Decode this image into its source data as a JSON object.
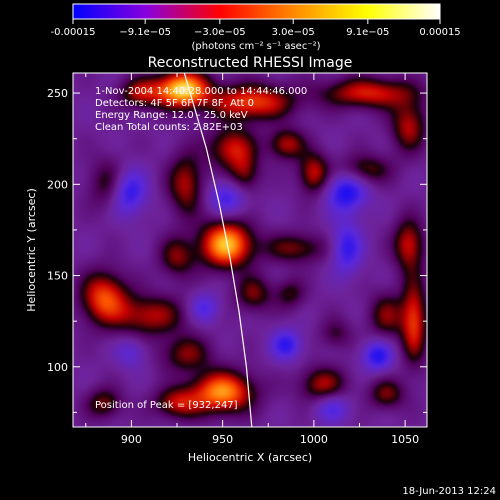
{
  "chart_data": {
    "type": "heatmap",
    "title": "Reconstructed RHESSI Image",
    "xlabel": "Heliocentric X (arcsec)",
    "ylabel": "Heliocentric Y (arcsec)",
    "xlim": [
      868,
      1062
    ],
    "ylim": [
      67,
      261
    ],
    "x_ticks": [
      900,
      950,
      1000,
      1050
    ],
    "x_tick_labels": [
      "900",
      "950",
      "1000",
      "1050"
    ],
    "y_ticks": [
      100,
      150,
      200,
      250
    ],
    "y_tick_labels": [
      "100",
      "150",
      "200",
      "250"
    ],
    "colorbar": {
      "label": "(photons cm⁻² s⁻¹ asec⁻²)",
      "range": [
        -0.00015,
        0.00015
      ],
      "ticks": [
        -0.00015,
        -9.1e-05,
        -3e-05,
        3e-05,
        9.1e-05,
        0.00015
      ],
      "tick_labels": [
        "-0.00015",
        "−9.1e−05",
        "−3.0e−05",
        "3.0e−05",
        "9.1e−05",
        "0.00015"
      ],
      "colors": [
        "#0000ff",
        "#8800dd",
        "#ff0000",
        "#ff8800",
        "#ffff00",
        "#ffffff"
      ]
    },
    "annotations": [
      "1-Nov-2004 14:40:28.000 to 14:44:46.000",
      "Detectors: 4F 5F 6F 7F 8F, Att 0",
      "Energy Range: 12.0 - 25.0 keV",
      "Clean   Total counts: 2.82E+03"
    ],
    "peak_label": "Position of Peak = [932,247]",
    "peak": [
      932,
      247
    ],
    "limb": [
      [
        929,
        261
      ],
      [
        941,
        220
      ],
      [
        948,
        190
      ],
      [
        954,
        160
      ],
      [
        959,
        130
      ],
      [
        963,
        100
      ],
      [
        966,
        67
      ]
    ],
    "blobs": [
      {
        "x": 928,
        "y": 252,
        "sx": 10,
        "sy": 7,
        "a": 1.15
      },
      {
        "x": 905,
        "y": 250,
        "sx": 8,
        "sy": 6,
        "a": 0.55
      },
      {
        "x": 966,
        "y": 245,
        "sx": 16,
        "sy": 7,
        "a": 0.75
      },
      {
        "x": 955,
        "y": 220,
        "sx": 9,
        "sy": 8,
        "a": 0.6
      },
      {
        "x": 985,
        "y": 222,
        "sx": 7,
        "sy": 6,
        "a": 0.55
      },
      {
        "x": 1030,
        "y": 250,
        "sx": 18,
        "sy": 6,
        "a": 0.65
      },
      {
        "x": 1052,
        "y": 232,
        "sx": 7,
        "sy": 10,
        "a": 0.55
      },
      {
        "x": 888,
        "y": 200,
        "sx": 8,
        "sy": 10,
        "a": 0.4
      },
      {
        "x": 930,
        "y": 200,
        "sx": 7,
        "sy": 12,
        "a": 0.55
      },
      {
        "x": 962,
        "y": 205,
        "sx": 6,
        "sy": 8,
        "a": 0.45
      },
      {
        "x": 1000,
        "y": 206,
        "sx": 6,
        "sy": 8,
        "a": 0.6
      },
      {
        "x": 1028,
        "y": 208,
        "sx": 10,
        "sy": 6,
        "a": 0.45
      },
      {
        "x": 952,
        "y": 167,
        "sx": 10,
        "sy": 9,
        "a": 1.05
      },
      {
        "x": 925,
        "y": 160,
        "sx": 7,
        "sy": 8,
        "a": 0.45
      },
      {
        "x": 990,
        "y": 165,
        "sx": 12,
        "sy": 6,
        "a": 0.45
      },
      {
        "x": 1052,
        "y": 167,
        "sx": 6,
        "sy": 10,
        "a": 0.6
      },
      {
        "x": 885,
        "y": 138,
        "sx": 9,
        "sy": 10,
        "a": 0.75
      },
      {
        "x": 910,
        "y": 128,
        "sx": 14,
        "sy": 8,
        "a": 0.55
      },
      {
        "x": 930,
        "y": 107,
        "sx": 10,
        "sy": 7,
        "a": 0.45
      },
      {
        "x": 967,
        "y": 140,
        "sx": 7,
        "sy": 7,
        "a": 0.45
      },
      {
        "x": 987,
        "y": 140,
        "sx": 6,
        "sy": 6,
        "a": 0.35
      },
      {
        "x": 1040,
        "y": 128,
        "sx": 7,
        "sy": 9,
        "a": 0.45
      },
      {
        "x": 1055,
        "y": 125,
        "sx": 5,
        "sy": 16,
        "a": 0.7
      },
      {
        "x": 950,
        "y": 86,
        "sx": 12,
        "sy": 8,
        "a": 0.95
      },
      {
        "x": 925,
        "y": 80,
        "sx": 9,
        "sy": 6,
        "a": 0.55
      },
      {
        "x": 1005,
        "y": 90,
        "sx": 9,
        "sy": 7,
        "a": 0.55
      },
      {
        "x": 1040,
        "y": 85,
        "sx": 7,
        "sy": 6,
        "a": 0.45
      },
      {
        "x": 885,
        "y": 80,
        "sx": 7,
        "sy": 6,
        "a": 0.45
      },
      {
        "x": 1012,
        "y": 118,
        "sx": 6,
        "sy": 6,
        "a": 0.3
      },
      {
        "x": 898,
        "y": 196,
        "sx": 7,
        "sy": 9,
        "a": -0.6
      },
      {
        "x": 953,
        "y": 193,
        "sx": 8,
        "sy": 7,
        "a": -0.45
      },
      {
        "x": 1018,
        "y": 196,
        "sx": 8,
        "sy": 8,
        "a": -0.6
      },
      {
        "x": 1018,
        "y": 165,
        "sx": 6,
        "sy": 10,
        "a": -0.5
      },
      {
        "x": 985,
        "y": 112,
        "sx": 6,
        "sy": 6,
        "a": -0.5
      },
      {
        "x": 1035,
        "y": 106,
        "sx": 6,
        "sy": 6,
        "a": -0.55
      },
      {
        "x": 940,
        "y": 132,
        "sx": 6,
        "sy": 6,
        "a": -0.4
      },
      {
        "x": 1010,
        "y": 78,
        "sx": 7,
        "sy": 6,
        "a": -0.4
      },
      {
        "x": 900,
        "y": 108,
        "sx": 6,
        "sy": 6,
        "a": -0.3
      }
    ]
  },
  "footer": {
    "date": "18-Jun-2013 12:24"
  }
}
